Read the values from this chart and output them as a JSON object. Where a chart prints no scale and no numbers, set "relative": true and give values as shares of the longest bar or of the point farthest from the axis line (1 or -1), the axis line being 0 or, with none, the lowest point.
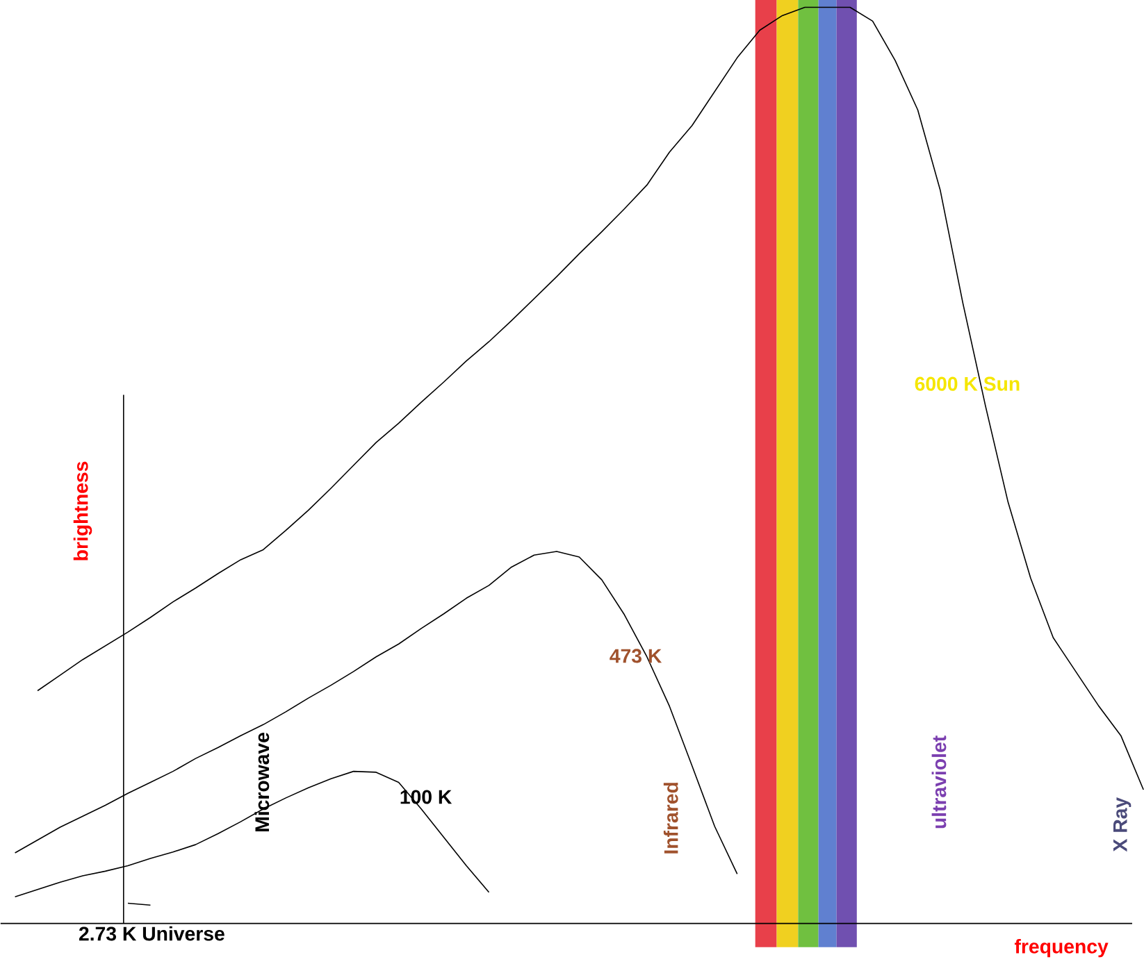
{
  "chart_data": {
    "type": "line",
    "relative": true,
    "xlabel": "frequency",
    "ylabel": "brightness",
    "marker": "none",
    "line_style": "solid",
    "categories": [
      null,
      null,
      null,
      null,
      null,
      null,
      null,
      null,
      null,
      null,
      null,
      null,
      null,
      null,
      null,
      null,
      null,
      null,
      null,
      null,
      null,
      null,
      null,
      null,
      null,
      null,
      null,
      null,
      null,
      null,
      null,
      null,
      null,
      null,
      null,
      null,
      null,
      null,
      null,
      null,
      null,
      null,
      null,
      null,
      null,
      null,
      null,
      null,
      null,
      null,
      null
    ],
    "series": [
      {
        "color": "#000000",
        "values": [
          null,
          0.254,
          0.271,
          0.288,
          0.303,
          0.318,
          0.334,
          0.351,
          0.366,
          0.382,
          0.397,
          0.408,
          0.429,
          0.451,
          0.475,
          0.5,
          0.525,
          0.546,
          0.569,
          0.591,
          0.614,
          0.635,
          0.658,
          0.682,
          0.706,
          0.731,
          0.755,
          0.78,
          0.806,
          0.842,
          0.871,
          0.908,
          0.945,
          0.975,
          0.991,
          1.0,
          1.0,
          1.0,
          0.985,
          0.942,
          0.888,
          0.8,
          0.677,
          0.565,
          0.46,
          0.377,
          0.312,
          0.275,
          0.238,
          0.205,
          0.146
        ]
      },
      {
        "color": "#000000",
        "values": [
          0.077,
          0.091,
          0.105,
          0.117,
          0.129,
          0.142,
          0.154,
          0.166,
          0.18,
          0.192,
          0.205,
          0.217,
          0.231,
          0.246,
          0.26,
          0.275,
          0.291,
          0.305,
          0.322,
          0.338,
          0.355,
          0.369,
          0.389,
          0.402,
          0.406,
          0.4,
          0.375,
          0.337,
          0.291,
          0.237,
          0.172,
          0.106,
          0.054,
          null,
          null,
          null,
          null,
          null,
          null,
          null,
          null,
          null,
          null,
          null,
          null,
          null,
          null,
          null,
          null,
          null,
          null
        ]
      },
      {
        "color": "#000000",
        "values": [
          0.029,
          0.037,
          0.045,
          0.052,
          0.057,
          0.063,
          0.071,
          0.078,
          0.086,
          0.098,
          0.111,
          0.125,
          0.137,
          0.148,
          0.158,
          0.166,
          0.165,
          0.154,
          0.125,
          0.094,
          0.063,
          0.034,
          null,
          null,
          null,
          null,
          null,
          null,
          null,
          null,
          null,
          null,
          null,
          null,
          null,
          null,
          null,
          null,
          null,
          null,
          null,
          null,
          null,
          null,
          null,
          null,
          null,
          null,
          null,
          null,
          null
        ]
      },
      {
        "color": "#000000",
        "values": [
          null,
          null,
          null,
          null,
          null,
          0.022,
          0.02,
          null,
          null,
          null,
          null,
          null,
          null,
          null,
          null,
          null,
          null,
          null,
          null,
          null,
          null,
          null,
          null,
          null,
          null,
          null,
          null,
          null,
          null,
          null,
          null,
          null,
          null,
          null,
          null,
          null,
          null,
          null,
          null,
          null,
          null,
          null,
          null,
          null,
          null,
          null,
          null,
          null,
          null,
          null,
          null
        ]
      }
    ],
    "annotations": [
      "6000 K Sun",
      "473 K",
      "100 K",
      "2.73 K Universe",
      "Microwave",
      "Infrared",
      "ultraviolet",
      "X Ray"
    ]
  }
}
